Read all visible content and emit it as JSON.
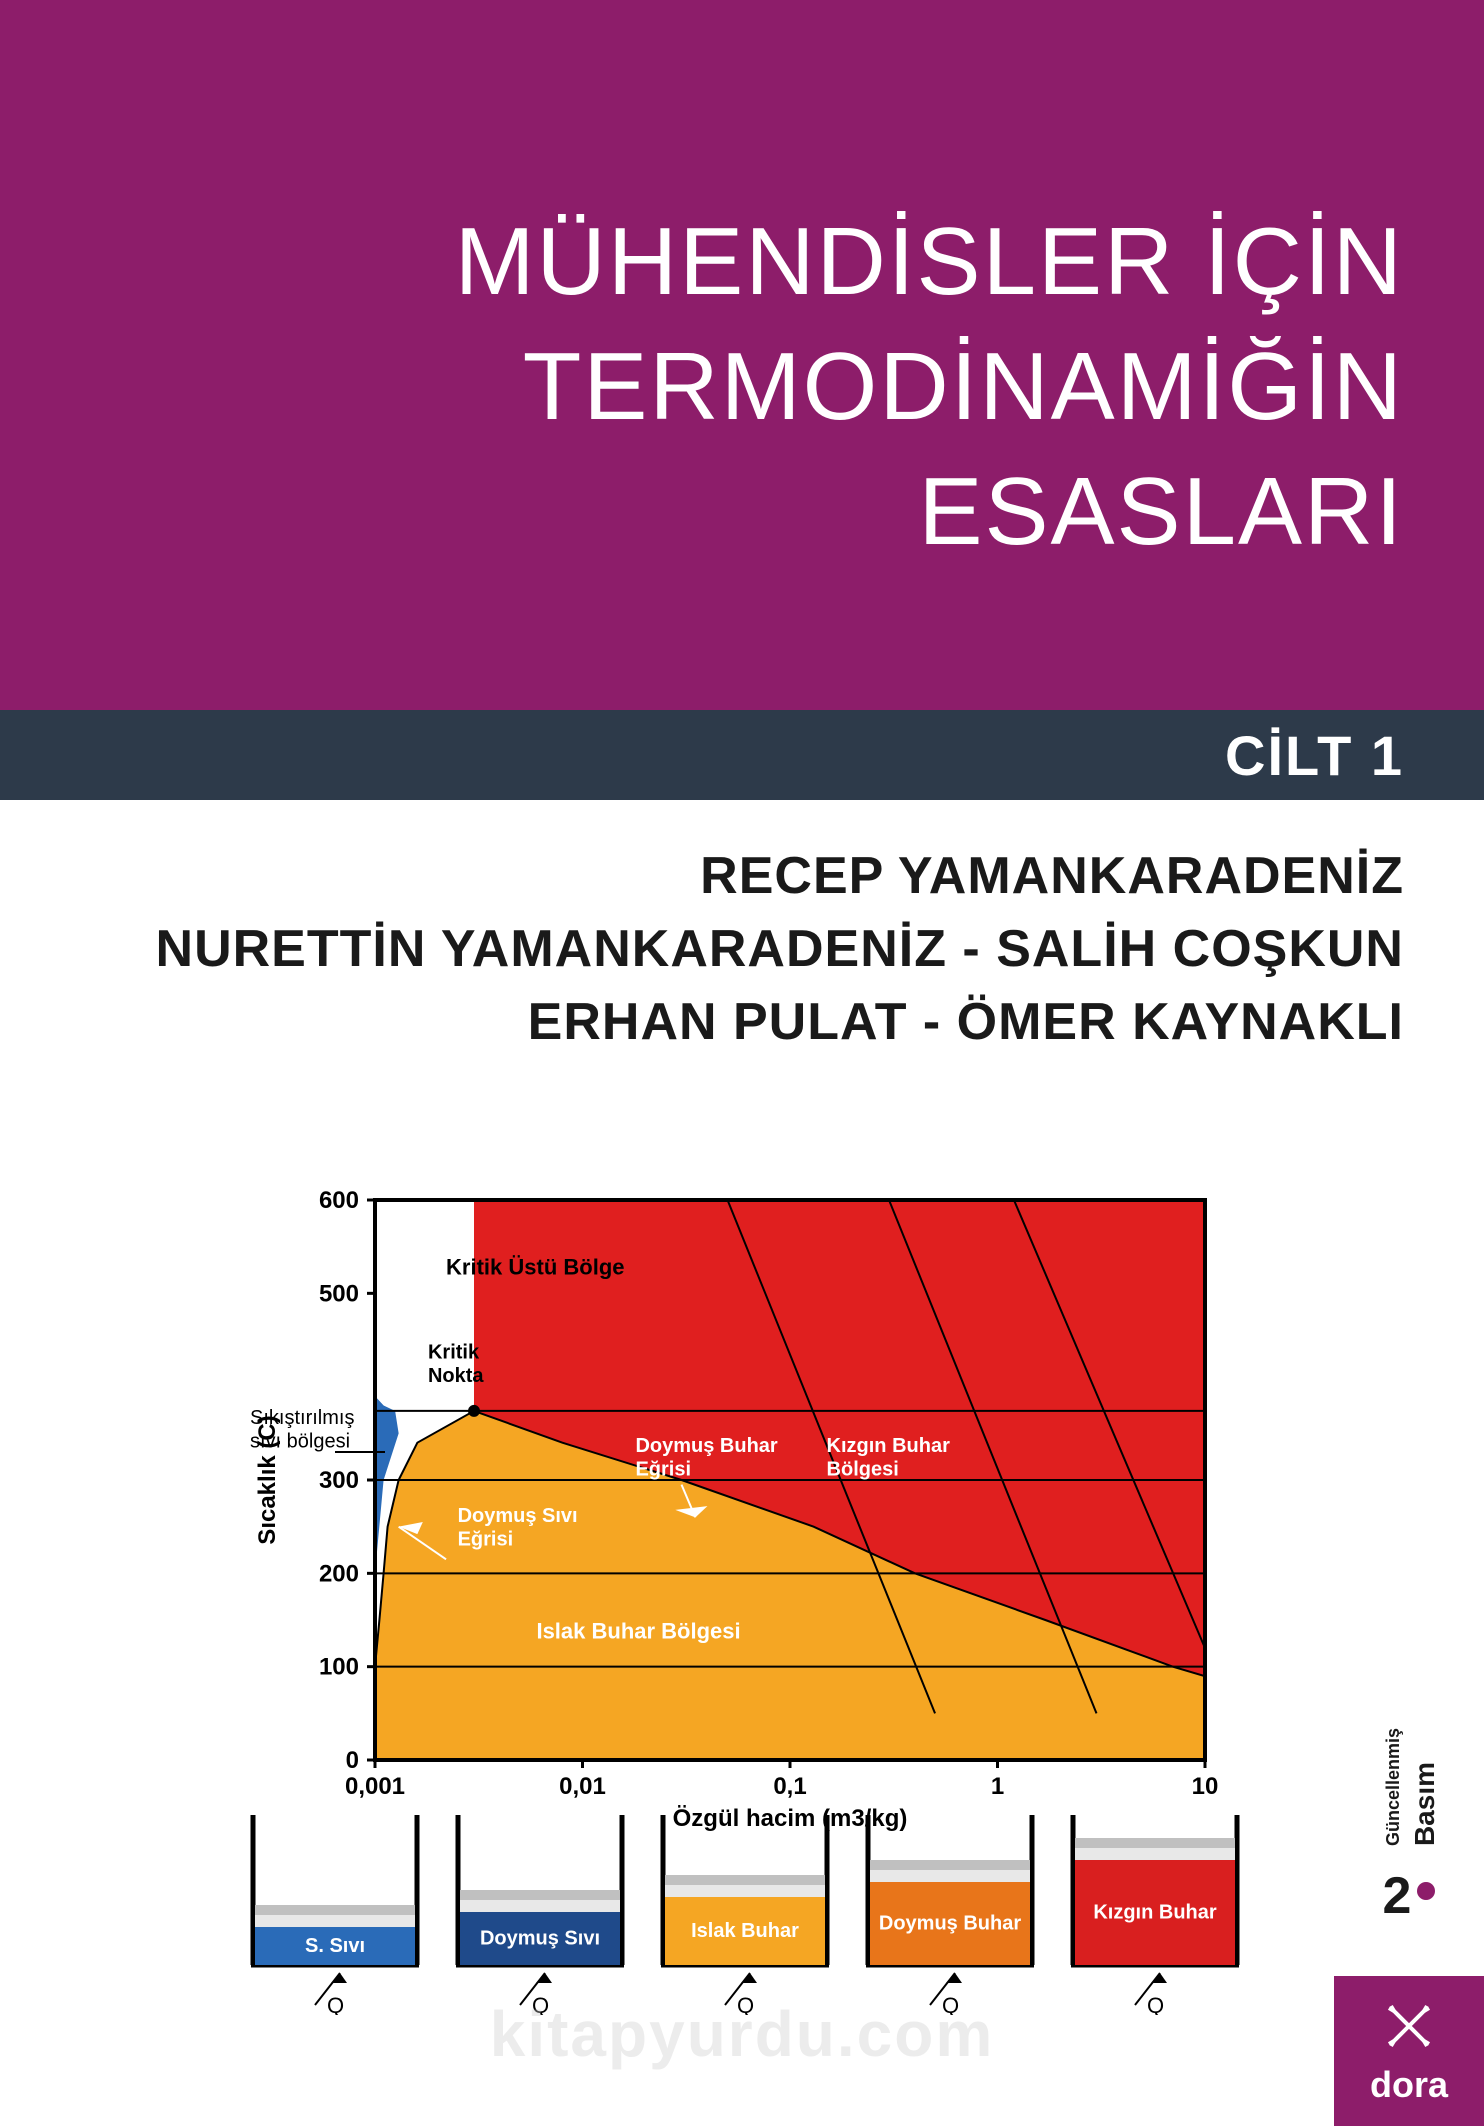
{
  "colors": {
    "header_bg": "#8d1d6a",
    "volume_bar_bg": "#2d3a4a",
    "logo_bg": "#8d1d6a",
    "white": "#ffffff",
    "black": "#1a1a1a",
    "chart_border": "#000000",
    "region_blue": "#2a6bb8",
    "region_yellow": "#f5a623",
    "region_red": "#e01f1f",
    "beaker_blue_dark": "#1f4a8a",
    "beaker_blue": "#2a6bb8",
    "beaker_yellow": "#f5a623",
    "beaker_orange": "#e8751a",
    "beaker_red": "#d91f1f",
    "beaker_lightgray": "#e8e8e8",
    "beaker_gray": "#c0c0c0"
  },
  "title": {
    "line1": "MÜHENDİSLER İÇİN",
    "line2": "TERMODİNAMİĞİN",
    "line3": "ESASLARI"
  },
  "volume": "CİLT 1",
  "authors": {
    "line1": "RECEP YAMANKARADENİZ",
    "line2": "NURETTİN YAMANKARADENİZ - SALİH COŞKUN",
    "line3": "ERHAN PULAT - ÖMER KAYNAKLI"
  },
  "chart": {
    "type": "phase-diagram",
    "y_label": "Sıcaklık (C)",
    "x_label": "Özgül hacim (m3/kg)",
    "y_ticks": [
      "0",
      "100",
      "200",
      "300",
      "500",
      "600"
    ],
    "y_tick_values": [
      0,
      100,
      200,
      300,
      500,
      600
    ],
    "x_ticks": [
      "0,001",
      "0,01",
      "0,1",
      "1",
      "10"
    ],
    "x_scale": "log",
    "ylim": [
      0,
      600
    ],
    "labels": {
      "supercritical": "Kritik Üstü Bölge",
      "critical_point": "Kritik Nokta",
      "compressed_liquid": "Sıkıştırılmış sıvı bölgesi",
      "sat_liquid_curve": "Doymuş Sıvı Eğrisi",
      "sat_vapor_curve": "Doymuş Buhar Eğrisi",
      "superheated": "Kızgın Buhar Bölgesi",
      "wet_vapor": "Islak Buhar Bölgesi"
    }
  },
  "beakers": [
    {
      "label": "S. Sıvı",
      "fill_color": "#2a6bb8",
      "fill_height": 0.25,
      "text_color": "#ffffff",
      "q_label": "Q"
    },
    {
      "label": "Doymuş Sıvı",
      "fill_color": "#1f4a8a",
      "fill_height": 0.35,
      "text_color": "#ffffff",
      "q_label": "Q"
    },
    {
      "label": "Islak Buhar",
      "fill_color": "#f5a623",
      "fill_height": 0.45,
      "text_color": "#ffffff",
      "q_label": "Q"
    },
    {
      "label": "Doymuş Buhar",
      "fill_color": "#e8751a",
      "fill_height": 0.55,
      "text_color": "#ffffff",
      "q_label": "Q"
    },
    {
      "label": "Kızgın Buhar",
      "fill_color": "#d91f1f",
      "fill_height": 0.7,
      "text_color": "#ffffff",
      "q_label": "Q"
    }
  ],
  "edition": {
    "number": "2",
    "dot_color": "#8d1d6a",
    "label_main": "Basım",
    "label_small": "Güncellenmiş"
  },
  "publisher": "dora",
  "watermark": "kitapyurdu.com"
}
